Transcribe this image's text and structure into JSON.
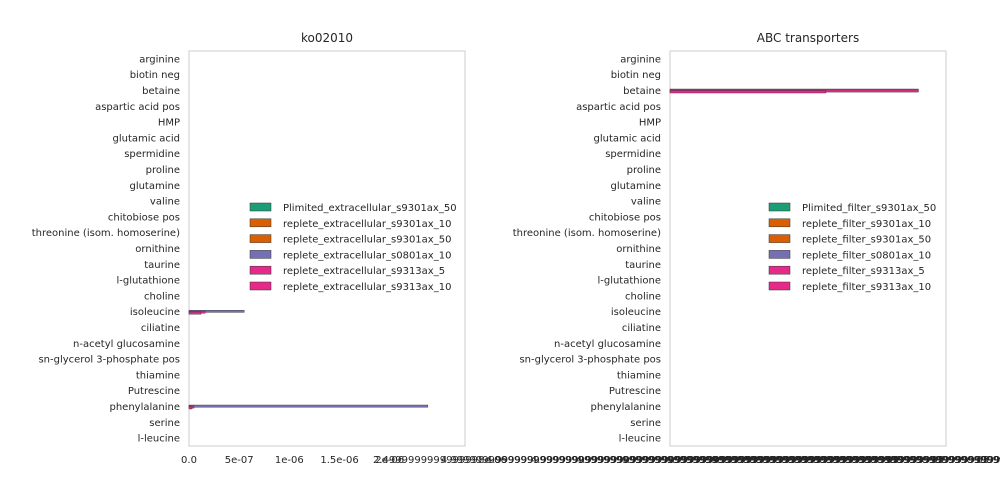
{
  "chart_data": [
    {
      "type": "bar",
      "orientation": "horizontal",
      "title": "ko02010",
      "xlabel": "",
      "ylabel": "",
      "categories": [
        "arginine",
        "biotin neg",
        "betaine",
        "aspartic acid pos",
        "HMP",
        "glutamic acid",
        "spermidine",
        "proline",
        "glutamine",
        "valine",
        "chitobiose pos",
        "threonine (isom. homoserine)",
        "ornithine",
        "taurine",
        "l-glutathione",
        "choline",
        "isoleucine",
        "ciliatine",
        "n-acetyl glucosamine",
        "sn-glycerol 3-phosphate pos",
        "thiamine",
        "Putrescine",
        "phenylalanine",
        "serine",
        "l-leucine"
      ],
      "xlim": [
        0,
        2.75e-06
      ],
      "xticks": [
        "0.0",
        "5e-07",
        "1e-06",
        "1.5e-06",
        "2e-06",
        "2.4999999999999998e-06"
      ],
      "legend_position": "center-right",
      "grid": false,
      "series": [
        {
          "name": "Plimited_extracellular_s9301ax_50",
          "color": "#1b9e77",
          "values": [
            0,
            0,
            0,
            0,
            0,
            0,
            0,
            0,
            0,
            0,
            0,
            0,
            0,
            0,
            0,
            0,
            0,
            0,
            0,
            0,
            0,
            0,
            0,
            0,
            0
          ]
        },
        {
          "name": "replete_extracellular_s9301ax_10",
          "color": "#d95f02",
          "values": [
            0,
            0,
            0,
            0,
            0,
            0,
            0,
            0,
            0,
            0,
            0,
            0,
            0,
            0,
            0,
            0,
            0,
            0,
            0,
            0,
            0,
            0,
            0,
            0,
            0
          ]
        },
        {
          "name": "replete_extracellular_s9301ax_50",
          "color": "#d95f02",
          "values": [
            0,
            0,
            0,
            0,
            0,
            0,
            0,
            0,
            0,
            0,
            0,
            0,
            0,
            0,
            0,
            0,
            0,
            0,
            0,
            0,
            0,
            0,
            0,
            0,
            0
          ]
        },
        {
          "name": "replete_extracellular_s0801ax_10",
          "color": "#7570b3",
          "values": [
            0,
            0,
            0,
            0,
            0,
            0,
            0,
            0,
            0,
            0,
            0,
            0,
            0,
            0,
            0,
            0,
            5.5e-07,
            0,
            0,
            0,
            0,
            0,
            2.38e-06,
            0,
            0
          ]
        },
        {
          "name": "replete_extracellular_s9313ax_5",
          "color": "#e7298a",
          "values": [
            0,
            0,
            0,
            0,
            0,
            0,
            0,
            0,
            0,
            0,
            0,
            0,
            0,
            0,
            0,
            0,
            1.6e-07,
            0,
            0,
            0,
            0,
            0,
            5e-08,
            0,
            0
          ]
        },
        {
          "name": "replete_extracellular_s9313ax_10",
          "color": "#e7298a",
          "values": [
            0,
            0,
            0,
            0,
            0,
            0,
            0,
            0,
            0,
            0,
            0,
            0,
            0,
            0,
            0,
            0,
            1.2e-07,
            0,
            0,
            0,
            0,
            0,
            3e-08,
            0,
            0
          ]
        }
      ]
    },
    {
      "type": "bar",
      "orientation": "horizontal",
      "title": "ABC transporters",
      "xlabel": "",
      "ylabel": "",
      "categories": [
        "arginine",
        "biotin neg",
        "betaine",
        "aspartic acid pos",
        "HMP",
        "glutamic acid",
        "spermidine",
        "proline",
        "glutamine",
        "valine",
        "chitobiose pos",
        "threonine (isom. homoserine)",
        "ornithine",
        "taurine",
        "l-glutathione",
        "choline",
        "isoleucine",
        "ciliatine",
        "n-acetyl glucosamine",
        "sn-glycerol 3-phosphate pos",
        "thiamine",
        "Putrescine",
        "phenylalanine",
        "serine",
        "l-leucine"
      ],
      "xlim": [
        0,
        1
      ],
      "xtick_labels_text": "4.9999999999999999999999999999999999999999999999999999999999999999999e-05",
      "legend_position": "center-right",
      "grid": false,
      "series": [
        {
          "name": "Plimited_filter_s9301ax_50",
          "color": "#1b9e77",
          "values": [
            0,
            0,
            0,
            0,
            0,
            0,
            0,
            0,
            0,
            0,
            0,
            0,
            0,
            0,
            0,
            0,
            0,
            0,
            0,
            0,
            0,
            0,
            0,
            0,
            0
          ]
        },
        {
          "name": "replete_filter_s9301ax_10",
          "color": "#d95f02",
          "values": [
            0,
            0,
            0,
            0,
            0,
            0,
            0,
            0,
            0,
            0,
            0,
            0,
            0,
            0,
            0,
            0,
            0,
            0,
            0,
            0,
            0,
            0,
            0,
            0,
            0
          ]
        },
        {
          "name": "replete_filter_s9301ax_50",
          "color": "#d95f02",
          "values": [
            0,
            0,
            0,
            0,
            0,
            0,
            0,
            0,
            0,
            0,
            0,
            0,
            0,
            0,
            0,
            0,
            0,
            0,
            0,
            0,
            0,
            0,
            0,
            0,
            0
          ]
        },
        {
          "name": "replete_filter_s0801ax_10",
          "color": "#7570b3",
          "values": [
            0,
            0,
            0.9,
            0,
            0,
            0,
            0,
            0,
            0,
            0,
            0,
            0,
            0,
            0,
            0,
            0,
            0,
            0,
            0,
            0,
            0,
            0,
            0,
            0,
            0
          ]
        },
        {
          "name": "replete_filter_s9313ax_5",
          "color": "#e7298a",
          "values": [
            0,
            0,
            0.9,
            0,
            0,
            0,
            0,
            0,
            0,
            0,
            0,
            0,
            0,
            0,
            0,
            0,
            0,
            0,
            0,
            0,
            0,
            0,
            0,
            0,
            0
          ]
        },
        {
          "name": "replete_filter_s9313ax_10",
          "color": "#e7298a",
          "values": [
            0,
            0,
            0.565,
            0,
            0,
            0,
            0,
            0,
            0,
            0,
            0,
            0,
            0,
            0,
            0,
            0,
            0,
            0,
            0,
            0,
            0,
            0,
            0,
            0,
            0
          ]
        }
      ]
    }
  ]
}
